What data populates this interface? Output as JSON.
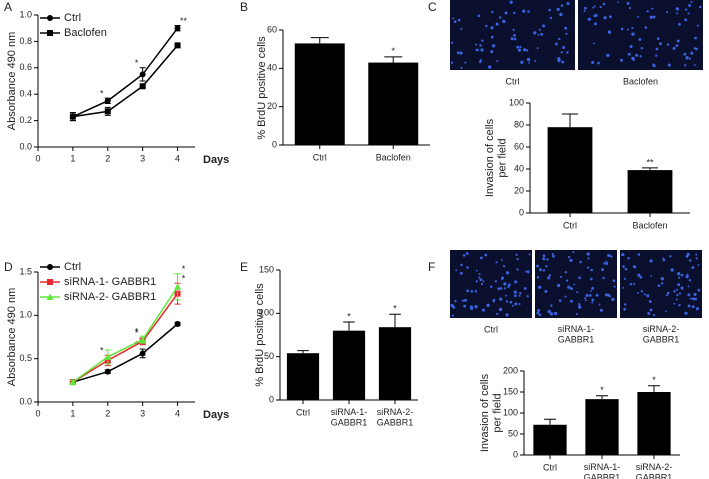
{
  "chart_data": [
    {
      "type": "line",
      "label": "A",
      "ylabel": "Absorbance 490 nm",
      "xlabel": "Days",
      "x": [
        1,
        2,
        3,
        4
      ],
      "xlim": [
        0,
        4.5
      ],
      "xticks": [
        0,
        1,
        2,
        3,
        4
      ],
      "ylim": [
        0,
        1.0
      ],
      "yticks": [
        {
          "value": 0,
          "label": "0.0"
        },
        {
          "value": 0.2,
          "label": "0.2"
        },
        {
          "value": 0.4,
          "label": "0.4"
        },
        {
          "value": 0.6,
          "label": "0.6"
        },
        {
          "value": 0.8,
          "label": "0.8"
        },
        {
          "value": 1.0,
          "label": "1.0"
        }
      ],
      "series": [
        {
          "name": "Ctrl",
          "color": "#000000",
          "marker": "circle",
          "values": [
            0.23,
            0.35,
            0.55,
            0.9
          ],
          "errors": [
            0.03,
            0.02,
            0.05,
            0.02
          ],
          "significance": [
            null,
            "*",
            "*",
            "**"
          ]
        },
        {
          "name": "Baclofen",
          "color": "#000000",
          "marker": "square",
          "values": [
            0.23,
            0.27,
            0.46,
            0.77
          ],
          "errors": [
            0.03,
            0.03,
            0.01,
            0.01
          ]
        }
      ]
    },
    {
      "type": "bar",
      "label": "B",
      "ylabel": "% BrdU positive cells",
      "color": "#000000",
      "categories": [
        "Ctrl",
        "Baclofen"
      ],
      "values": [
        53,
        43
      ],
      "errors": [
        3,
        3
      ],
      "significance": [
        null,
        "*"
      ],
      "ylim": [
        0,
        60
      ],
      "yticks": [
        0,
        20,
        40,
        60
      ]
    },
    {
      "type": "bar",
      "label": "C",
      "ylabel": "Invasion of cells\nper field",
      "color": "#000000",
      "images": [
        "Ctrl",
        "Baclofen"
      ],
      "categories": [
        "Ctrl",
        "Baclofen"
      ],
      "values": [
        78,
        39
      ],
      "errors": [
        12,
        2
      ],
      "significance": [
        null,
        "**"
      ],
      "ylim": [
        0,
        100
      ],
      "yticks": [
        0,
        20,
        40,
        60,
        80,
        100
      ]
    },
    {
      "type": "line",
      "label": "D",
      "ylabel": "Absorbance 490 nm",
      "xlabel": "Days",
      "x": [
        1,
        2,
        3,
        4
      ],
      "xlim": [
        0,
        4.5
      ],
      "xticks": [
        0,
        1,
        2,
        3,
        4
      ],
      "ylim": [
        0,
        1.5
      ],
      "yticks": [
        {
          "value": 0,
          "label": "0.0"
        },
        {
          "value": 0.5,
          "label": "0.5"
        },
        {
          "value": 1.0,
          "label": "1.0"
        },
        {
          "value": 1.5,
          "label": "1.5"
        }
      ],
      "series": [
        {
          "name": "Ctrl",
          "color": "#000000",
          "marker": "circle",
          "values": [
            0.23,
            0.35,
            0.56,
            0.9
          ],
          "errors": [
            0.02,
            0.02,
            0.05,
            0.02
          ],
          "significance": [
            null,
            null,
            "*",
            null
          ]
        },
        {
          "name": "siRNA-1- GABBR1",
          "color": "#e8262b",
          "marker": "square",
          "values": [
            0.23,
            0.48,
            0.7,
            1.25
          ],
          "errors": [
            0.02,
            0.06,
            0.04,
            0.12
          ],
          "significance": [
            null,
            "*",
            "*",
            "*"
          ]
        },
        {
          "name": "siRNA-2- GABBR1",
          "color": "#5ee83a",
          "marker": "triangle",
          "values": [
            0.23,
            0.52,
            0.72,
            1.33
          ],
          "errors": [
            0.02,
            0.08,
            0.04,
            0.15
          ],
          "significance": [
            null,
            null,
            "*",
            "*"
          ]
        }
      ]
    },
    {
      "type": "bar",
      "label": "E",
      "ylabel": "% BrdU positive cells",
      "color": "#000000",
      "categories": [
        "Ctrl",
        "siRNA-1-\nGABBR1",
        "siRNA-2-\nGABBR1"
      ],
      "values": [
        54,
        80,
        84
      ],
      "errors": [
        3,
        10,
        15
      ],
      "significance": [
        null,
        "*",
        "*"
      ],
      "ylim": [
        0,
        150
      ],
      "yticks": [
        0,
        50,
        100,
        150
      ]
    },
    {
      "type": "bar",
      "label": "F",
      "ylabel": "Invasion of cells\nper field",
      "color": "#000000",
      "images": [
        "Ctrl",
        "siRNA-1-\nGABBR1",
        "siRNA-2-\nGABBR1"
      ],
      "categories": [
        "Ctrl",
        "siRNA-1-\nGABBR1",
        "siRNA-2-\nGABBR1"
      ],
      "values": [
        72,
        133,
        150
      ],
      "errors": [
        13,
        8,
        15
      ],
      "significance": [
        null,
        "*",
        "*"
      ],
      "ylim": [
        0,
        200
      ],
      "yticks": [
        0,
        50,
        100,
        150,
        200
      ]
    }
  ]
}
